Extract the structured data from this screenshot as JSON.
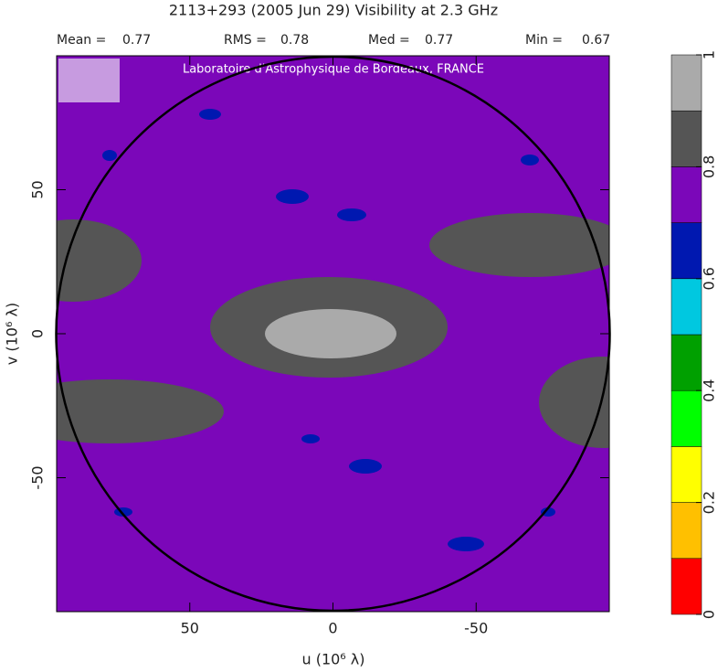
{
  "chart_data": {
    "type": "visibility-map",
    "title": "2113+293  (2005 Jun 29)   Visibility at  2.3 GHz",
    "stats": [
      {
        "label": "Mean =",
        "value": 0.77
      },
      {
        "label": "RMS =",
        "value": 0.78
      },
      {
        "label": "Med =",
        "value": 0.77
      },
      {
        "label": "Min =",
        "value": 0.67
      }
    ],
    "annotation": "Laboratoire d'Astrophysique de Bordeaux, FRANCE",
    "xlabel": "u  (10⁶ λ)",
    "ylabel": "v  (10⁶ λ)",
    "xlim": [
      96.5,
      -96.5
    ],
    "ylim": [
      -96.5,
      96.5
    ],
    "xticks": [
      50,
      0,
      -50
    ],
    "yticks": [
      -50,
      0,
      50
    ],
    "colorbar": {
      "levels": [
        0,
        0.1,
        0.2,
        0.3,
        0.4,
        0.5,
        0.6,
        0.7,
        0.8,
        0.9,
        1
      ],
      "colors": [
        "#ff0000",
        "#ffc000",
        "#ffff00",
        "#00ff00",
        "#00a000",
        "#00a0a0",
        "#00c8e0",
        "#0018b0",
        "#7b07b9",
        "#555555",
        "#aaaaaa"
      ],
      "ticks": [
        0,
        0.2,
        0.4,
        0.6,
        0.8,
        1
      ]
    }
  }
}
